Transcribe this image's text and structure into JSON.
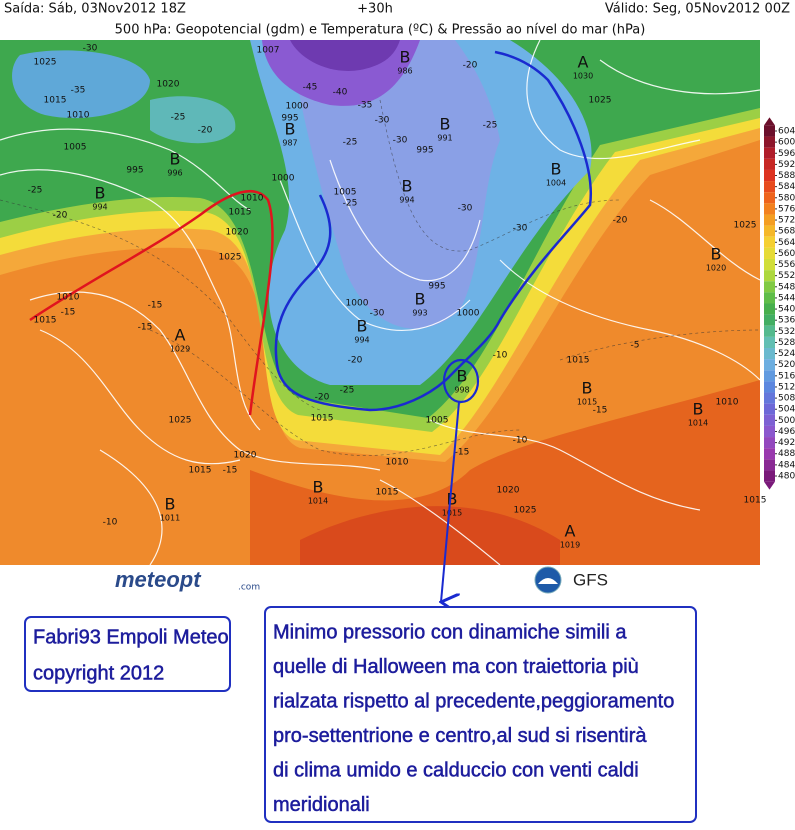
{
  "header": {
    "issued": "Saída: Sáb, 03Nov2012 18Z",
    "lead": "+30h",
    "valid": "Válido: Seg, 05Nov2012 00Z",
    "title": "500 hPa: Geopotencial (gdm) e Temperatura (ºC) & Pressão ao nível do mar (hPa)"
  },
  "colorbar": {
    "ticks": [
      604,
      600,
      596,
      592,
      588,
      584,
      580,
      576,
      572,
      568,
      564,
      560,
      556,
      552,
      548,
      544,
      540,
      536,
      532,
      528,
      524,
      520,
      516,
      512,
      508,
      504,
      500,
      496,
      492,
      488,
      484,
      480
    ]
  },
  "pressure_centers": [
    {
      "letter": "B",
      "value": "986"
    },
    {
      "letter": "A",
      "value": "1030"
    },
    {
      "letter": "B",
      "value": "987"
    },
    {
      "letter": "B",
      "value": "996"
    },
    {
      "letter": "B",
      "value": "994"
    },
    {
      "letter": "B",
      "value": "991"
    },
    {
      "letter": "B",
      "value": "994"
    },
    {
      "letter": "B",
      "value": "1004"
    },
    {
      "letter": "B",
      "value": "1020"
    },
    {
      "letter": "A",
      "value": "1029"
    },
    {
      "letter": "B",
      "value": "993"
    },
    {
      "letter": "B",
      "value": "994"
    },
    {
      "letter": "B",
      "value": "998"
    },
    {
      "letter": "B",
      "value": "1015"
    },
    {
      "letter": "B",
      "value": "1014"
    },
    {
      "letter": "B",
      "value": "1014"
    },
    {
      "letter": "B",
      "value": "1011"
    },
    {
      "letter": "B",
      "value": "1015"
    },
    {
      "letter": "A",
      "value": "1019"
    }
  ],
  "map_labels": [
    "-30",
    "-35",
    "1025",
    "1020",
    "1015",
    "1010",
    "1005",
    "-25",
    "-20",
    "995",
    "-25",
    "-20",
    "1015",
    "1010",
    "-15",
    "-15",
    "-15",
    "1025",
    "1015",
    "-15",
    "1020",
    "1025",
    "1020",
    "1015",
    "1010",
    "1000",
    "-10",
    "-25",
    "-30",
    "-35",
    "-40",
    "-45",
    "1000",
    "995",
    "-30",
    "-20",
    "1005",
    "-25",
    "-30",
    "-20",
    "1025",
    "1025",
    "-25",
    "-30",
    "1015",
    "-10",
    "-5",
    "-20",
    "1015",
    "-25",
    "1000",
    "-30",
    "995",
    "1000",
    "-10",
    "1005",
    "-15",
    "1010",
    "1015",
    "1020",
    "1025",
    "1010",
    "-15",
    "1015",
    "-20",
    "1007",
    "995"
  ],
  "logos": {
    "meteopt": "meteopt",
    "meteopt_suffix": ".com",
    "gfs": "GFS"
  },
  "credit": {
    "lines": [
      "Fabri93 Empoli Meteo",
      "copyright 2012"
    ]
  },
  "comment": {
    "lines": [
      "Minimo pressorio con dinamiche simili a",
      "quelle di Halloween ma con traiettoria più",
      "rialzata rispetto al precedente,peggioramento",
      "pro-settentrione e centro,al sud si risentirà",
      "di clima umido e calduccio con venti caldi",
      "meridionali"
    ]
  }
}
